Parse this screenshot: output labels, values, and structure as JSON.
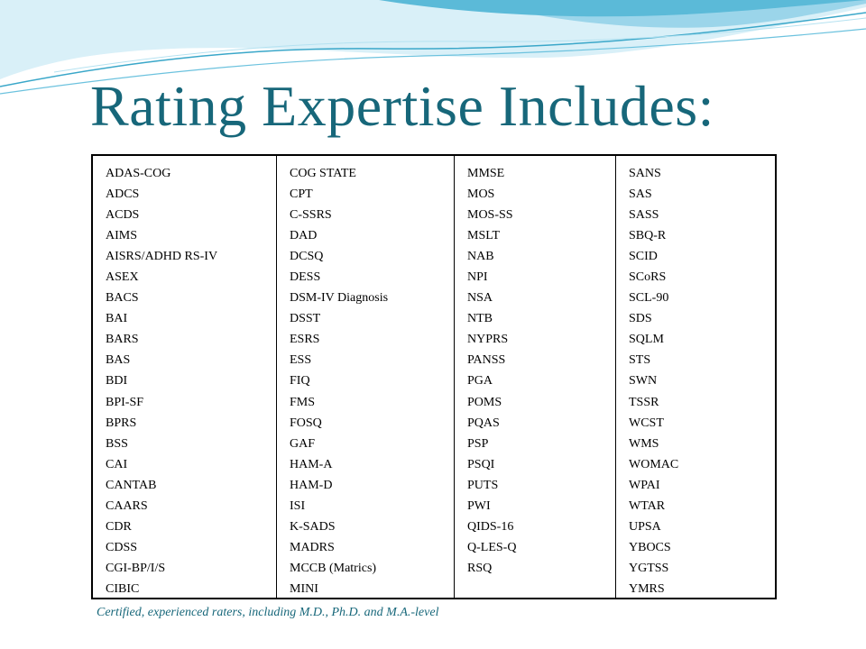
{
  "title": "Rating Expertise Includes:",
  "columns": [
    [
      "ADAS-COG",
      "ADCS",
      "ACDS",
      "AIMS",
      "AISRS/ADHD RS-IV",
      "ASEX",
      "BACS",
      "BAI",
      "BARS",
      "BAS",
      "BDI",
      "BPI-SF",
      "BPRS",
      "BSS",
      "CAI",
      "CANTAB",
      "CAARS",
      "CDR",
      "CDSS",
      "CGI-BP/I/S",
      "CIBIC"
    ],
    [
      "COG STATE",
      "CPT",
      "C-SSRS",
      "DAD",
      "DCSQ",
      "DESS",
      "DSM-IV Diagnosis",
      "DSST",
      "ESRS",
      "ESS",
      "FIQ",
      "FMS",
      "FOSQ",
      "GAF",
      "HAM-A",
      "HAM-D",
      "ISI",
      "K-SADS",
      "MADRS",
      "MCCB (Matrics)",
      "MINI"
    ],
    [
      "MMSE",
      "MOS",
      "MOS-SS",
      "MSLT",
      "NAB",
      "NPI",
      "NSA",
      "NTB",
      "NYPRS",
      "PANSS",
      "PGA",
      "POMS",
      "PQAS",
      "PSP",
      "PSQI",
      "PUTS",
      "PWI",
      "QIDS-16",
      "Q-LES-Q",
      "RSQ"
    ],
    [
      "SANS",
      "SAS",
      "SASS",
      "SBQ-R",
      "SCID",
      "SCoRS",
      "SCL-90",
      "SDS",
      "SQLM",
      "STS",
      "SWN",
      "TSSR",
      "WCST",
      "WMS",
      "WOMAC",
      "WPAI",
      "WTAR",
      "UPSA",
      "YBOCS",
      "YGTSS",
      "YMRS"
    ]
  ],
  "footnote": "Certified, experienced raters, including M.D., Ph.D. and M.A.-level",
  "colors": {
    "title": "#17677a",
    "wave_dark": "#3aa7c9",
    "wave_mid": "#8fd0e6",
    "wave_light": "#d9f0f8"
  }
}
